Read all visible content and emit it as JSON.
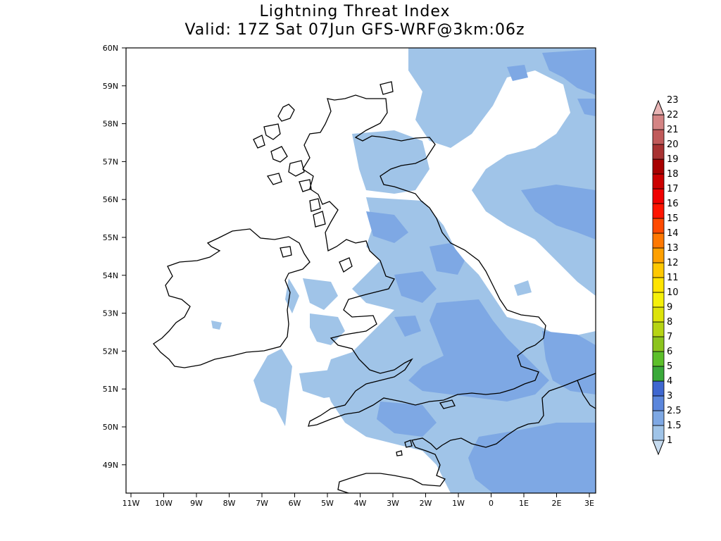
{
  "title": {
    "line1": "Lightning Threat Index",
    "line2": "Valid: 17Z Sat 07Jun GFS-WRF@3km:06z"
  },
  "axes": {
    "lat_labels": [
      "60N",
      "59N",
      "58N",
      "57N",
      "56N",
      "55N",
      "54N",
      "53N",
      "52N",
      "51N",
      "50N",
      "49N"
    ],
    "lon_labels": [
      "11W",
      "10W",
      "9W",
      "8W",
      "7W",
      "6W",
      "5W",
      "4W",
      "3W",
      "2W",
      "1W",
      "0",
      "1E",
      "2E",
      "3E"
    ]
  },
  "colorbar": {
    "levels": [
      {
        "label": "1",
        "color": "#c6dbef"
      },
      {
        "label": "1.5",
        "color": "#a0c4e8"
      },
      {
        "label": "2.5",
        "color": "#7ea8e4"
      },
      {
        "label": "3",
        "color": "#5b86dc"
      },
      {
        "label": "4",
        "color": "#3f67d0"
      },
      {
        "label": "5",
        "color": "#3aa93a"
      },
      {
        "label": "6",
        "color": "#5cbf2a"
      },
      {
        "label": "7",
        "color": "#8cc41e"
      },
      {
        "label": "8",
        "color": "#b6d414"
      },
      {
        "label": "9",
        "color": "#dde30a"
      },
      {
        "label": "10",
        "color": "#f5f00a"
      },
      {
        "label": "11",
        "color": "#ffe400"
      },
      {
        "label": "12",
        "color": "#ffc800"
      },
      {
        "label": "13",
        "color": "#ffa000"
      },
      {
        "label": "14",
        "color": "#ff7800"
      },
      {
        "label": "15",
        "color": "#ff4a00"
      },
      {
        "label": "16",
        "color": "#ff1400"
      },
      {
        "label": "17",
        "color": "#f00000"
      },
      {
        "label": "18",
        "color": "#cc0000"
      },
      {
        "label": "19",
        "color": "#a80000"
      },
      {
        "label": "20",
        "color": "#a83232"
      },
      {
        "label": "21",
        "color": "#c05a5a"
      },
      {
        "label": "22",
        "color": "#d48484"
      },
      {
        "label": "23",
        "color": "#e8b4b4"
      }
    ]
  },
  "map_colors": {
    "level1": "#a0c4e8",
    "level2": "#7ea8e4",
    "coast": "#000000"
  }
}
